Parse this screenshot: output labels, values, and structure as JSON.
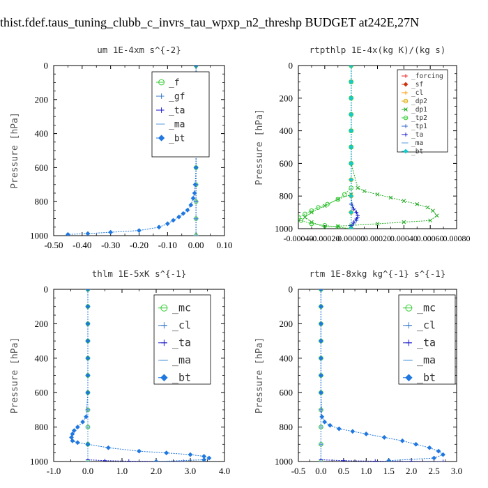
{
  "figure_title": "thist.fdef.taus_tuning_clubb_c_invrs_tau_wpxp_n2_threshp  BUDGET at242E,27N",
  "ylabel": "Pressure [hPa]",
  "chart_data": [
    {
      "type": "line",
      "title": "um   1E-4xm s^{-2}",
      "xlim": [
        -0.5,
        0.1
      ],
      "ylim": [
        1000,
        0
      ],
      "xticks": [
        "-0.50",
        "-0.40",
        "-0.30",
        "-0.20",
        "-0.10",
        "0.00",
        "0.10"
      ],
      "xtick_values": [
        -0.5,
        -0.4,
        -0.3,
        -0.2,
        -0.1,
        0.0,
        0.1
      ],
      "yticks": [
        "0",
        "200",
        "400",
        "600",
        "800",
        "1000"
      ],
      "ytick_values": [
        0,
        200,
        400,
        600,
        800,
        1000
      ],
      "legend_size": "large",
      "series": [
        {
          "name": "_f",
          "color": "#33cc33",
          "marker": "o",
          "x": [
            0.0,
            0.0,
            0.0,
            0.0,
            0.0,
            0.0,
            0.0,
            0.0,
            0.0,
            0.0,
            0.0
          ],
          "y": [
            0,
            100,
            200,
            300,
            400,
            500,
            600,
            700,
            800,
            900,
            1000
          ]
        },
        {
          "name": "_gf",
          "color": "#3377cc",
          "marker": "+",
          "x": [
            0.0,
            0.0,
            0.0,
            0.0,
            0.0,
            0.0,
            0.0,
            0.0,
            0.0,
            0.0,
            0.0
          ],
          "y": [
            0,
            100,
            200,
            300,
            400,
            500,
            600,
            700,
            800,
            900,
            1000
          ]
        },
        {
          "name": "_ta",
          "color": "#1a1acc",
          "marker": "+",
          "x": [
            0.0,
            0.0,
            0.0,
            0.0,
            0.0,
            0.0,
            0.0,
            0.0,
            0.0,
            0.0,
            0.0
          ],
          "y": [
            0,
            100,
            200,
            300,
            400,
            500,
            600,
            700,
            800,
            900,
            1000
          ]
        },
        {
          "name": "_ma",
          "color": "#5599dd",
          "marker": "-",
          "x": [
            0.0,
            0.0,
            0.0,
            0.0,
            0.0,
            0.0,
            0.0,
            0.0,
            0.0,
            0.0,
            0.0
          ],
          "y": [
            0,
            100,
            200,
            300,
            400,
            500,
            600,
            700,
            800,
            900,
            1000
          ]
        },
        {
          "name": "_bt",
          "color": "#1f77e0",
          "marker": "*",
          "x": [
            0.0,
            0.0,
            0.0,
            0.0,
            0.0,
            0.0,
            0.0,
            -0.003,
            -0.005,
            -0.01,
            -0.018,
            -0.03,
            -0.045,
            -0.06,
            -0.08,
            -0.1,
            -0.13,
            -0.2,
            -0.3,
            -0.38,
            -0.45
          ],
          "y": [
            0,
            100,
            200,
            300,
            400,
            500,
            600,
            700,
            750,
            780,
            820,
            850,
            870,
            890,
            910,
            930,
            950,
            970,
            980,
            988,
            993
          ]
        }
      ]
    },
    {
      "type": "line",
      "title": "rtpthlp   1E-4x(kg K)/(kg s)",
      "xlim": [
        -0.0004,
        0.0008
      ],
      "ylim": [
        1000,
        0
      ],
      "xticks": [
        "-0.00040",
        "-0.00020",
        "0.00000",
        "0.00020",
        "0.00040",
        "0.00060",
        "0.00080"
      ],
      "xtick_values": [
        -0.0004,
        -0.0002,
        0.0,
        0.0002,
        0.0004,
        0.0006,
        0.0008
      ],
      "yticks": [
        "0",
        "200",
        "400",
        "600",
        "800",
        "1000"
      ],
      "ytick_values": [
        0,
        200,
        400,
        600,
        800,
        1000
      ],
      "legend_size": "small",
      "series": [
        {
          "name": "_forcing",
          "color": "#ee2222",
          "marker": "+",
          "x": [
            0.0,
            0.0,
            0.0,
            0.0,
            0.0,
            0.0,
            0.0,
            0.0,
            0.0,
            0.0,
            0.0
          ],
          "y": [
            0,
            100,
            200,
            300,
            400,
            500,
            600,
            700,
            800,
            900,
            1000
          ]
        },
        {
          "name": "_sf",
          "color": "#cc3311",
          "marker": "*",
          "x": [
            0.0,
            0.0,
            0.0,
            0.0,
            0.0,
            0.0,
            0.0,
            0.0,
            0.0,
            0.0,
            0.0
          ],
          "y": [
            0,
            100,
            200,
            300,
            400,
            500,
            600,
            700,
            800,
            900,
            1000
          ]
        },
        {
          "name": "_cl",
          "color": "#ff9900",
          "marker": "+",
          "x": [
            0.0,
            0.0,
            0.0,
            0.0,
            0.0,
            0.0,
            0.0,
            0.0,
            0.0,
            0.0,
            0.0
          ],
          "y": [
            0,
            100,
            200,
            300,
            400,
            500,
            600,
            700,
            800,
            900,
            1000
          ]
        },
        {
          "name": "_dp2",
          "color": "#ddaa00",
          "marker": "o",
          "x": [
            0.0,
            0.0,
            0.0,
            0.0,
            0.0,
            0.0,
            0.0,
            0.0,
            0.0,
            0.0,
            0.0
          ],
          "y": [
            0,
            100,
            200,
            300,
            400,
            500,
            600,
            700,
            800,
            900,
            1000
          ]
        },
        {
          "name": "_dp1",
          "color": "#22aa22",
          "marker": "x",
          "x": [
            0.0,
            0.0,
            0.0,
            0.0,
            0.0,
            0.0,
            0.0,
            5e-05,
            0.0001,
            0.0002,
            0.0003,
            0.0004,
            0.0005,
            0.00058,
            0.00062,
            0.00065,
            0.0006,
            0.0004,
            0.0002,
            0.0,
            -0.0001,
            -0.0002,
            -0.0003,
            -0.00035,
            -0.0003,
            -0.0002,
            -0.0001,
            0.0
          ],
          "y": [
            0,
            100,
            200,
            300,
            400,
            500,
            600,
            750,
            770,
            790,
            810,
            830,
            850,
            870,
            890,
            920,
            950,
            960,
            970,
            980,
            985,
            990,
            960,
            930,
            900,
            860,
            820,
            790
          ]
        },
        {
          "name": "_tp2",
          "color": "#33cc33",
          "marker": "o",
          "x": [
            0.0,
            0.0,
            0.0,
            0.0,
            0.0,
            0.0,
            0.0,
            0.0,
            -5e-05,
            -0.0001,
            -0.00018,
            -0.00025,
            -0.0003,
            -0.00035,
            -0.0004,
            -0.00038,
            -0.0003,
            -0.0002,
            -0.0001,
            0.0
          ],
          "y": [
            0,
            100,
            200,
            300,
            400,
            500,
            600,
            750,
            790,
            820,
            850,
            870,
            890,
            910,
            930,
            950,
            970,
            980,
            990,
            1000
          ]
        },
        {
          "name": "_tp1",
          "color": "#3366cc",
          "marker": "+",
          "x": [
            0.0,
            0.0,
            0.0,
            0.0,
            0.0,
            0.0,
            0.0,
            0.0,
            1e-05,
            2e-05,
            4e-05,
            5e-05,
            4e-05,
            2e-05,
            0.0
          ],
          "y": [
            0,
            100,
            200,
            300,
            400,
            500,
            600,
            800,
            860,
            880,
            900,
            930,
            950,
            970,
            990
          ]
        },
        {
          "name": "_ta",
          "color": "#1a1acc",
          "marker": "+",
          "x": [
            0.0,
            0.0,
            0.0,
            0.0,
            0.0,
            0.0,
            0.0,
            0.0,
            2e-05,
            4e-05,
            5e-05,
            4e-05,
            2e-05,
            0.0
          ],
          "y": [
            0,
            100,
            200,
            300,
            400,
            500,
            600,
            850,
            880,
            900,
            920,
            940,
            960,
            980
          ]
        },
        {
          "name": "_ma",
          "color": "#5599dd",
          "marker": "-",
          "x": [
            0.0,
            0.0,
            0.0,
            0.0,
            0.0,
            0.0,
            0.0,
            0.0,
            0.0,
            0.0,
            0.0
          ],
          "y": [
            0,
            100,
            200,
            300,
            400,
            500,
            600,
            700,
            800,
            900,
            1000
          ]
        },
        {
          "name": "_bt",
          "color": "#11cccc",
          "marker": "*",
          "x": [
            0.0,
            0.0,
            0.0,
            0.0,
            0.0,
            0.0,
            0.0,
            0.0,
            0.0,
            0.0,
            0.0
          ],
          "y": [
            0,
            100,
            200,
            300,
            400,
            500,
            600,
            700,
            800,
            900,
            1000
          ]
        }
      ]
    },
    {
      "type": "line",
      "title": "thlm   1E-5xK s^{-1}",
      "xlim": [
        -1.0,
        4.0
      ],
      "ylim": [
        1000,
        0
      ],
      "xticks": [
        "-1.0",
        "0.0",
        "1.0",
        "2.0",
        "3.0",
        "4.0"
      ],
      "xtick_values": [
        -1.0,
        0.0,
        1.0,
        2.0,
        3.0,
        4.0
      ],
      "yticks": [
        "0",
        "200",
        "400",
        "600",
        "800",
        "1000"
      ],
      "ytick_values": [
        0,
        200,
        400,
        600,
        800,
        1000
      ],
      "legend_size": "large",
      "series": [
        {
          "name": "_mc",
          "color": "#33cc33",
          "marker": "o",
          "x": [
            0.0,
            0.0,
            0.0,
            0.0,
            0.0,
            0.0,
            0.0,
            0.0,
            0.0,
            0.0,
            0.0
          ],
          "y": [
            0,
            100,
            200,
            300,
            400,
            500,
            600,
            700,
            800,
            900,
            1000
          ]
        },
        {
          "name": "_cl",
          "color": "#3377cc",
          "marker": "+",
          "x": [
            0.0,
            0.0,
            0.0,
            0.0,
            0.0,
            0.0,
            0.0,
            0.0,
            0.0,
            0.0,
            0.0
          ],
          "y": [
            0,
            100,
            200,
            300,
            400,
            500,
            600,
            700,
            800,
            900,
            1000
          ]
        },
        {
          "name": "_ta",
          "color": "#1a1acc",
          "marker": "+",
          "x": [
            0.0,
            0.0,
            0.0,
            0.0,
            0.0,
            0.0,
            0.0,
            0.0,
            0.0,
            0.5,
            1.2,
            2.0,
            2.8
          ],
          "y": [
            0,
            100,
            200,
            300,
            400,
            500,
            600,
            700,
            990,
            995,
            998,
            999,
            1000
          ]
        },
        {
          "name": "_ma",
          "color": "#5599dd",
          "marker": "-",
          "x": [
            0.0,
            0.0,
            0.0,
            0.0,
            0.0,
            0.0,
            0.0,
            0.0,
            0.0,
            0.0,
            0.0
          ],
          "y": [
            0,
            100,
            200,
            300,
            400,
            500,
            600,
            700,
            800,
            900,
            1000
          ]
        },
        {
          "name": "_bt",
          "color": "#1f77e0",
          "marker": "*",
          "x": [
            0.0,
            0.0,
            0.0,
            0.0,
            0.0,
            0.0,
            0.0,
            -0.05,
            -0.15,
            -0.3,
            -0.4,
            -0.45,
            -0.48,
            -0.45,
            -0.3,
            0.0,
            0.6,
            1.5,
            2.3,
            3.0,
            3.4,
            3.55,
            3.4,
            2.0
          ],
          "y": [
            0,
            100,
            200,
            300,
            400,
            500,
            600,
            740,
            770,
            800,
            820,
            840,
            860,
            880,
            890,
            900,
            920,
            940,
            950,
            960,
            970,
            980,
            990,
            1000
          ]
        }
      ]
    },
    {
      "type": "line",
      "title": "rtm   1E-8xkg kg^{-1} s^{-1}",
      "xlim": [
        -0.5,
        3.0
      ],
      "ylim": [
        1000,
        0
      ],
      "xticks": [
        "-0.5",
        "0.0",
        "0.5",
        "1.0",
        "1.5",
        "2.0",
        "2.5",
        "3.0"
      ],
      "xtick_values": [
        -0.5,
        0.0,
        0.5,
        1.0,
        1.5,
        2.0,
        2.5,
        3.0
      ],
      "yticks": [
        "0",
        "200",
        "400",
        "600",
        "800",
        "1000"
      ],
      "ytick_values": [
        0,
        200,
        400,
        600,
        800,
        1000
      ],
      "legend_size": "large",
      "series": [
        {
          "name": "_mc",
          "color": "#33cc33",
          "marker": "o",
          "x": [
            0.0,
            0.0,
            0.0,
            0.0,
            0.0,
            0.0,
            0.0,
            0.0,
            0.0,
            0.0,
            0.0
          ],
          "y": [
            0,
            100,
            200,
            300,
            400,
            500,
            600,
            700,
            800,
            900,
            1000
          ]
        },
        {
          "name": "_cl",
          "color": "#3377cc",
          "marker": "+",
          "x": [
            0.0,
            0.0,
            0.0,
            0.0,
            0.0,
            0.0,
            0.0,
            0.0,
            0.0,
            0.0,
            0.0
          ],
          "y": [
            0,
            100,
            200,
            300,
            400,
            500,
            600,
            700,
            800,
            900,
            1000
          ]
        },
        {
          "name": "_ta",
          "color": "#1a1acc",
          "marker": "+",
          "x": [
            0.0,
            0.0,
            0.0,
            0.0,
            0.0,
            0.0,
            0.0,
            0.0,
            0.0,
            0.5,
            1.2,
            2.0,
            2.7
          ],
          "y": [
            0,
            100,
            200,
            300,
            400,
            500,
            600,
            700,
            990,
            995,
            998,
            999,
            1000
          ]
        },
        {
          "name": "_ma",
          "color": "#5599dd",
          "marker": "-",
          "x": [
            0.0,
            0.0,
            0.0,
            0.0,
            0.0,
            0.0,
            0.0,
            0.0,
            0.0,
            0.0,
            0.0
          ],
          "y": [
            0,
            100,
            200,
            300,
            400,
            500,
            600,
            700,
            800,
            900,
            1000
          ]
        },
        {
          "name": "_bt",
          "color": "#1f77e0",
          "marker": "*",
          "x": [
            0.0,
            0.0,
            0.0,
            0.0,
            0.0,
            0.0,
            0.0,
            0.02,
            0.08,
            0.2,
            0.4,
            0.7,
            1.0,
            1.4,
            1.8,
            2.1,
            2.4,
            2.6,
            2.7,
            2.5,
            1.5
          ],
          "y": [
            0,
            100,
            200,
            300,
            400,
            500,
            600,
            740,
            770,
            790,
            810,
            825,
            840,
            860,
            880,
            900,
            920,
            940,
            960,
            980,
            995
          ]
        }
      ]
    }
  ]
}
